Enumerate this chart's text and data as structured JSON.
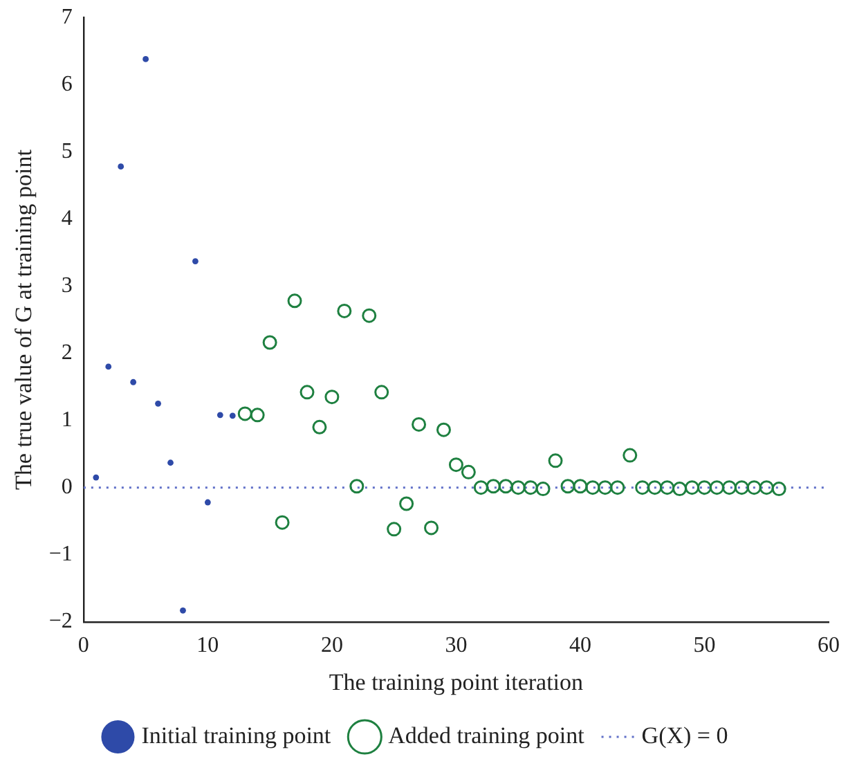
{
  "chart_data": {
    "type": "scatter",
    "xlabel": "The training point iteration",
    "ylabel": "The true value of G at training point",
    "xlim": [
      0,
      60
    ],
    "xticks": [
      0,
      10,
      20,
      30,
      40,
      50,
      60
    ],
    "ylim": [
      -2,
      7
    ],
    "yticks": [
      -2,
      -1,
      0,
      1,
      2,
      3,
      4,
      5,
      6,
      7
    ],
    "grid": false,
    "legend": "bottom",
    "marker": "circle",
    "series": [
      {
        "name": "Initial training point",
        "color": "#2e4aa8",
        "x": [
          1,
          2,
          3,
          4,
          5,
          6,
          7,
          8,
          9,
          10,
          11,
          12
        ],
        "values": [
          0.15,
          1.8,
          4.78,
          1.57,
          6.38,
          1.25,
          0.37,
          -1.83,
          3.37,
          -0.22,
          1.08,
          1.07
        ]
      },
      {
        "name": "Added training point",
        "color": "#1e8040",
        "x": [
          13,
          14,
          15,
          16,
          17,
          18,
          19,
          20,
          21,
          22,
          23,
          24,
          25,
          26,
          27,
          28,
          29,
          30,
          31,
          32,
          33,
          34,
          35,
          36,
          37,
          38,
          39,
          40,
          41,
          42,
          43,
          44,
          45,
          46,
          47,
          48,
          49,
          50,
          51,
          52,
          53,
          54,
          55,
          56
        ],
        "values": [
          1.1,
          1.08,
          2.16,
          -0.52,
          2.78,
          1.42,
          0.9,
          1.35,
          2.63,
          0.02,
          2.56,
          1.42,
          -0.62,
          -0.24,
          0.94,
          -0.6,
          0.86,
          0.34,
          0.23,
          0,
          0.02,
          0.02,
          0,
          0,
          -0.02,
          0.4,
          0.02,
          0.02,
          0,
          0,
          0,
          0.48,
          0,
          0,
          0,
          -0.02,
          0,
          0,
          0,
          0,
          0,
          0,
          0,
          -0.02
        ]
      }
    ],
    "ref_lines": [
      {
        "axis": "y",
        "value": 0,
        "label": "G(X) = 0",
        "color": "#6070c8",
        "line_style": "dotted"
      }
    ]
  }
}
